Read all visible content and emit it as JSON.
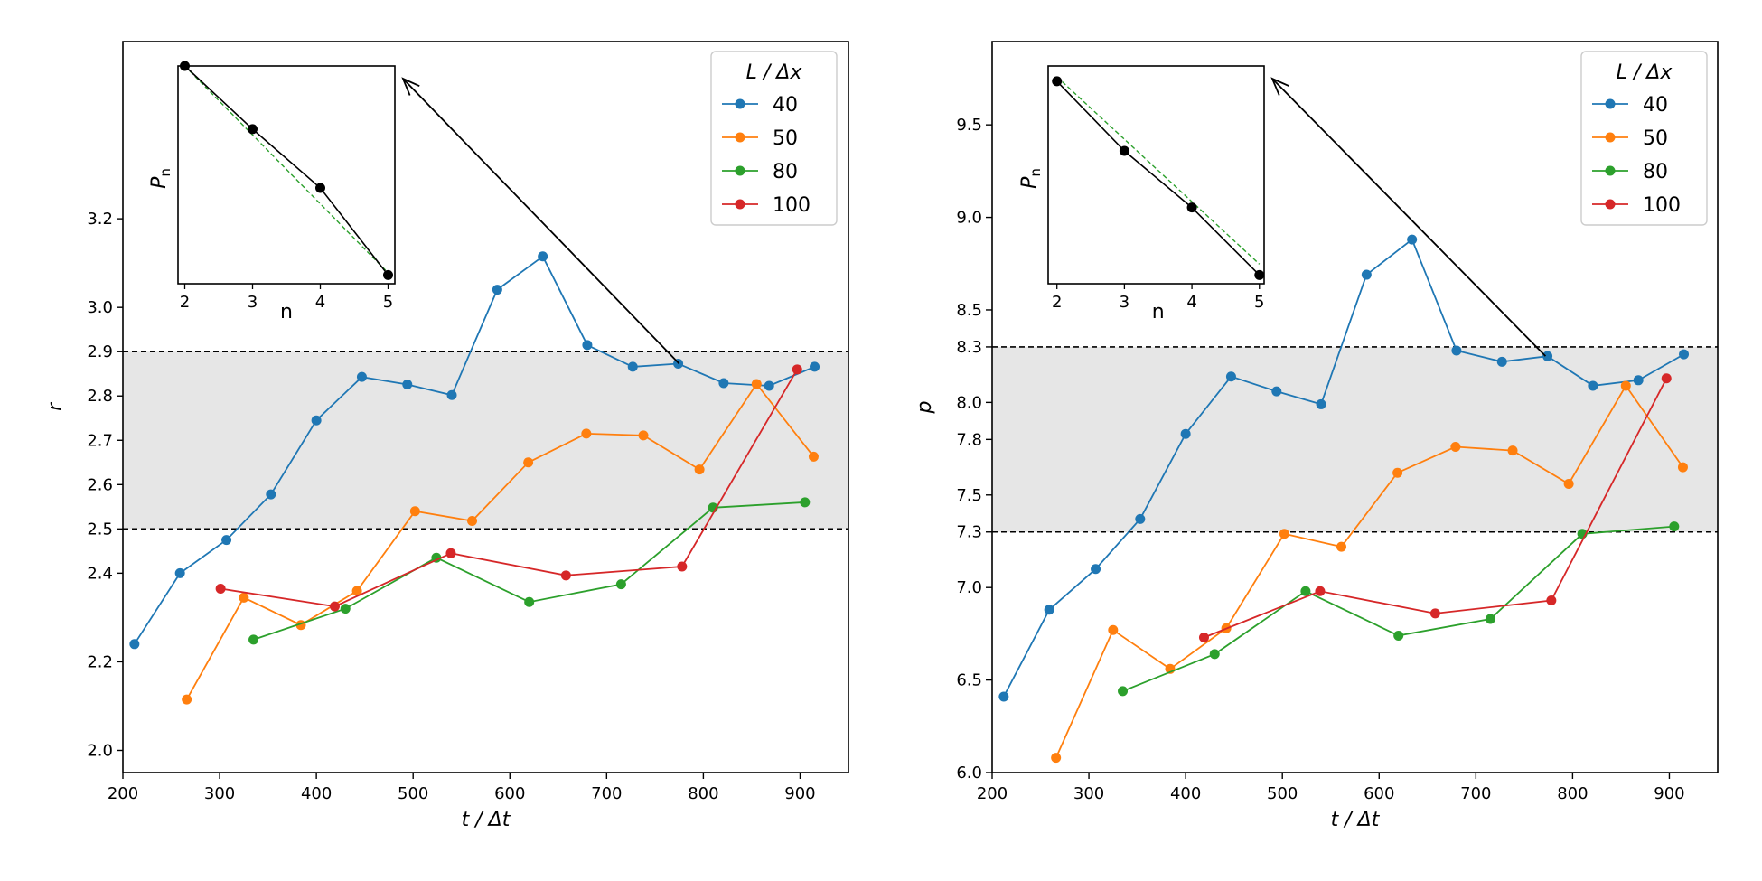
{
  "chart_data": [
    {
      "type": "line",
      "xlabel": "t / Δt",
      "ylabel": "r",
      "xlim": [
        200,
        950
      ],
      "ylim": [
        1.95,
        3.6
      ],
      "xticks": [
        "200",
        "300",
        "400",
        "500",
        "600",
        "700",
        "800",
        "900"
      ],
      "yticks": [
        "2.0",
        "2.2",
        "2.4",
        "2.5",
        "2.6",
        "2.7",
        "2.8",
        "2.9",
        "3.0",
        "3.2"
      ],
      "shaded_band": [
        2.5,
        2.9
      ],
      "reference_lines": [
        2.5,
        2.9
      ],
      "legend_title": "L / Δx",
      "legend_location": "upper right",
      "series": [
        {
          "name": "40",
          "color": "#1f77b4",
          "x": [
            212,
            259,
            307,
            353,
            400,
            447,
            494,
            540,
            587,
            634,
            680,
            727,
            774,
            821,
            868,
            915
          ],
          "y": [
            2.24,
            2.4,
            2.475,
            2.578,
            2.745,
            2.843,
            2.826,
            2.802,
            3.04,
            3.115,
            2.915,
            2.866,
            2.873,
            2.829,
            2.823,
            2.866
          ]
        },
        {
          "name": "50",
          "color": "#ff7f0e",
          "x": [
            266,
            325,
            384,
            442,
            502,
            561,
            619,
            679,
            738,
            796,
            855,
            914
          ],
          "y": [
            2.115,
            2.345,
            2.283,
            2.36,
            2.54,
            2.518,
            2.65,
            2.715,
            2.711,
            2.634,
            2.827,
            2.663
          ]
        },
        {
          "name": "80",
          "color": "#2ca02c",
          "x": [
            335,
            430,
            524,
            620,
            715,
            810,
            905
          ],
          "y": [
            2.25,
            2.32,
            2.435,
            2.335,
            2.375,
            2.548,
            2.56
          ]
        },
        {
          "name": "100",
          "color": "#d62728",
          "x": [
            301,
            419,
            539,
            658,
            778,
            897
          ],
          "y": [
            2.365,
            2.325,
            2.445,
            2.395,
            2.415,
            2.86
          ]
        }
      ],
      "inset": {
        "xlabel": "n",
        "ylabel": "P_n",
        "xticks": [
          "2",
          "3",
          "4",
          "5"
        ],
        "points": [
          {
            "n": 2,
            "y": 1.0
          },
          {
            "n": 3,
            "y": 0.71
          },
          {
            "n": 4,
            "y": 0.44
          },
          {
            "n": 5,
            "y": 0.04
          }
        ],
        "fit": [
          {
            "n": 2,
            "y": 1.0
          },
          {
            "n": 5,
            "y": 0.05
          }
        ],
        "arrow_to_x": 775,
        "arrow_to_y": 2.873
      }
    },
    {
      "type": "line",
      "xlabel": "t / Δt",
      "ylabel": "p",
      "xlim": [
        200,
        950
      ],
      "ylim": [
        6.0,
        9.95
      ],
      "xticks": [
        "200",
        "300",
        "400",
        "500",
        "600",
        "700",
        "800",
        "900"
      ],
      "yticks": [
        "6.0",
        "6.5",
        "7.0",
        "7.3",
        "7.5",
        "7.8",
        "8.0",
        "8.3",
        "8.5",
        "9.0",
        "9.5"
      ],
      "shaded_band": [
        7.3,
        8.3
      ],
      "reference_lines": [
        7.3,
        8.3
      ],
      "legend_title": "L / Δx",
      "legend_location": "upper right",
      "series": [
        {
          "name": "40",
          "color": "#1f77b4",
          "x": [
            212,
            259,
            307,
            353,
            400,
            447,
            494,
            540,
            587,
            634,
            680,
            727,
            774,
            821,
            868,
            915
          ],
          "y": [
            6.41,
            6.88,
            7.1,
            7.37,
            7.83,
            8.14,
            8.06,
            7.99,
            8.69,
            8.88,
            8.28,
            8.22,
            8.25,
            8.09,
            8.12,
            8.26
          ]
        },
        {
          "name": "50",
          "color": "#ff7f0e",
          "x": [
            266,
            325,
            384,
            442,
            502,
            561,
            619,
            679,
            738,
            796,
            855,
            914
          ],
          "y": [
            6.08,
            6.77,
            6.56,
            6.78,
            7.29,
            7.22,
            7.62,
            7.76,
            7.74,
            7.56,
            8.09,
            7.65
          ]
        },
        {
          "name": "80",
          "color": "#2ca02c",
          "x": [
            335,
            430,
            524,
            620,
            715,
            810,
            905
          ],
          "y": [
            6.44,
            6.64,
            6.98,
            6.74,
            6.83,
            7.29,
            7.33
          ]
        },
        {
          "name": "100",
          "color": "#d62728",
          "x": [
            419,
            539,
            658,
            778,
            897
          ],
          "y": [
            6.73,
            6.98,
            6.86,
            6.93,
            8.13
          ]
        }
      ],
      "inset": {
        "xlabel": "n",
        "ylabel": "P_n",
        "xticks": [
          "2",
          "3",
          "4",
          "5"
        ],
        "points": [
          {
            "n": 2,
            "y": 0.93
          },
          {
            "n": 3,
            "y": 0.61
          },
          {
            "n": 4,
            "y": 0.35
          },
          {
            "n": 5,
            "y": 0.04
          }
        ],
        "fit": [
          {
            "n": 2,
            "y": 0.95
          },
          {
            "n": 5,
            "y": 0.09
          }
        ],
        "arrow_to_x": 772,
        "arrow_to_y": 8.25
      }
    }
  ]
}
